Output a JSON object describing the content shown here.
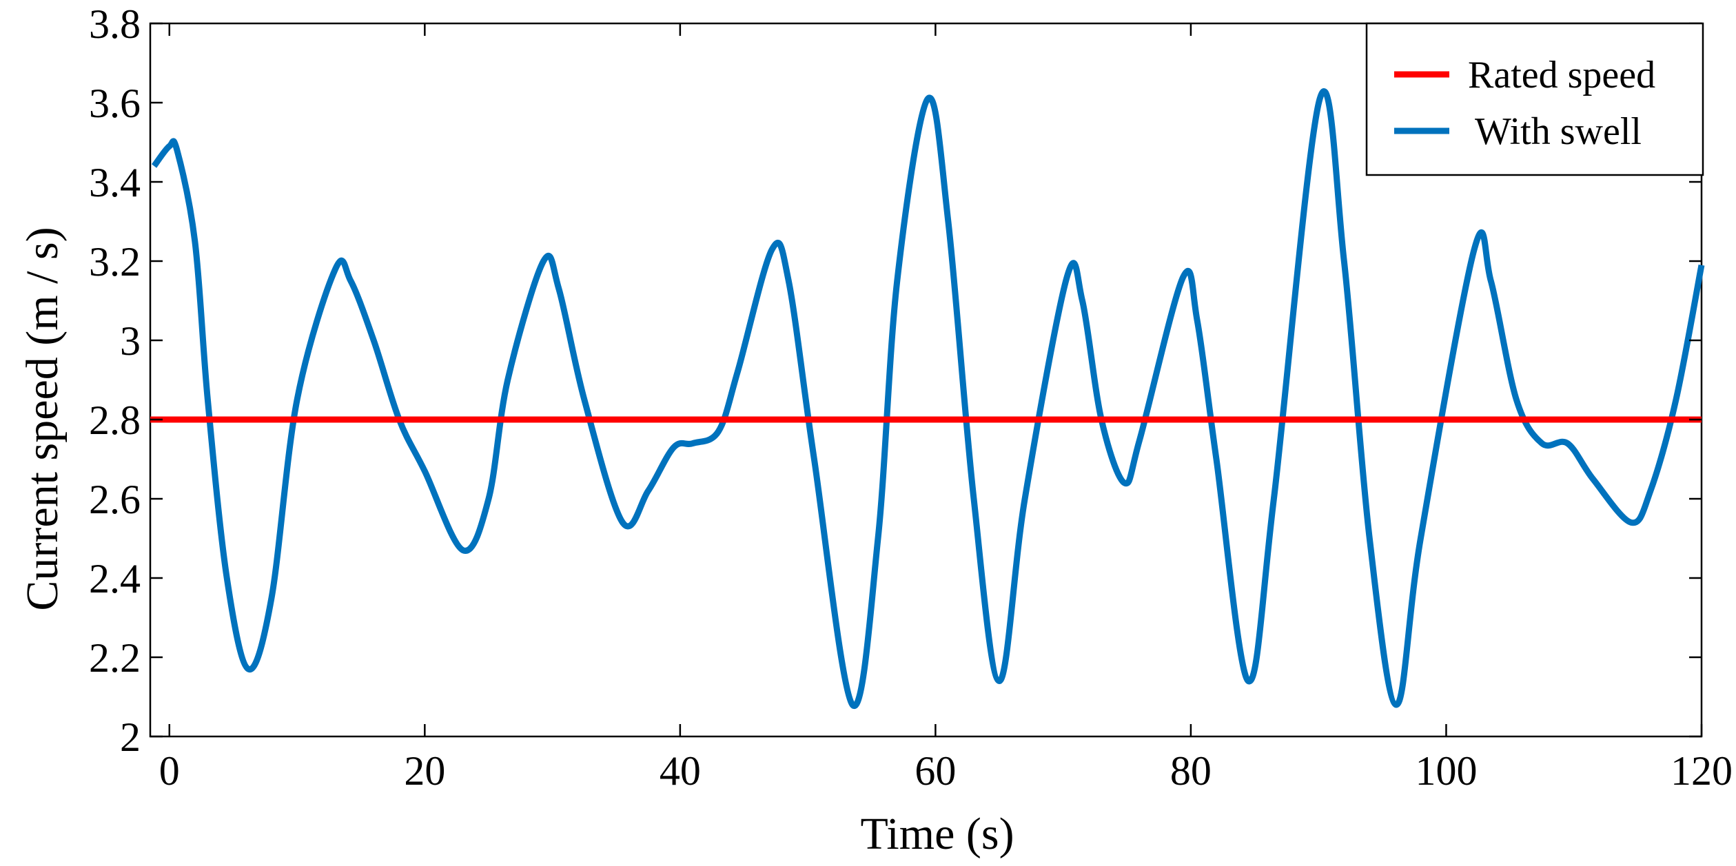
{
  "chart_data": {
    "type": "line",
    "title": "",
    "xlabel": "Time (s)",
    "ylabel": "Current speed (m / s)",
    "xlim": [
      -1.5,
      120
    ],
    "ylim": [
      2.0,
      3.8
    ],
    "xticks": [
      0,
      20,
      40,
      60,
      80,
      100,
      120
    ],
    "yticks": [
      2,
      2.2,
      2.4,
      2.6,
      2.8,
      3,
      3.2,
      3.4,
      3.6,
      3.8
    ],
    "xtick_labels": [
      "0",
      "20",
      "40",
      "60",
      "80",
      "100",
      "120"
    ],
    "ytick_labels": [
      "2",
      "2.2",
      "2.4",
      "2.6",
      "2.8",
      "3",
      "3.2",
      "3.4",
      "3.6",
      "3.8"
    ],
    "grid": false,
    "legend_position": "top-right",
    "series": [
      {
        "name": "Rated speed",
        "color": "#ff0000",
        "points": [
          [
            -1.5,
            2.8
          ],
          [
            120,
            2.8
          ]
        ]
      },
      {
        "name": "With swell",
        "color": "#0072bd",
        "points": [
          [
            -1.2,
            3.44
          ],
          [
            0,
            3.49
          ],
          [
            0.6,
            3.48
          ],
          [
            2,
            3.25
          ],
          [
            3,
            2.85
          ],
          [
            4.5,
            2.4
          ],
          [
            6.2,
            2.17
          ],
          [
            8,
            2.35
          ],
          [
            10,
            2.85
          ],
          [
            13,
            3.18
          ],
          [
            14.2,
            3.15
          ],
          [
            16,
            3.0
          ],
          [
            18,
            2.8
          ],
          [
            20,
            2.67
          ],
          [
            23,
            2.47
          ],
          [
            25,
            2.6
          ],
          [
            26.5,
            2.9
          ],
          [
            29.3,
            3.2
          ],
          [
            30.5,
            3.13
          ],
          [
            32.5,
            2.85
          ],
          [
            35.5,
            2.54
          ],
          [
            37.5,
            2.62
          ],
          [
            39.5,
            2.73
          ],
          [
            41,
            2.74
          ],
          [
            43,
            2.77
          ],
          [
            44.5,
            2.92
          ],
          [
            47.2,
            3.23
          ],
          [
            48.5,
            3.15
          ],
          [
            50.5,
            2.7
          ],
          [
            53.5,
            2.08
          ],
          [
            55.5,
            2.5
          ],
          [
            57,
            3.15
          ],
          [
            59.4,
            3.61
          ],
          [
            61,
            3.3
          ],
          [
            63,
            2.6
          ],
          [
            65,
            2.14
          ],
          [
            67,
            2.6
          ],
          [
            70.3,
            3.16
          ],
          [
            71.5,
            3.1
          ],
          [
            73,
            2.8
          ],
          [
            74.8,
            2.64
          ],
          [
            76,
            2.75
          ],
          [
            79.4,
            3.16
          ],
          [
            80.5,
            3.05
          ],
          [
            82,
            2.7
          ],
          [
            84.5,
            2.14
          ],
          [
            86.5,
            2.6
          ],
          [
            90.1,
            3.61
          ],
          [
            92,
            3.2
          ],
          [
            94,
            2.5
          ],
          [
            96.1,
            2.08
          ],
          [
            98,
            2.5
          ],
          [
            102.2,
            3.23
          ],
          [
            103.5,
            3.15
          ],
          [
            105.5,
            2.85
          ],
          [
            107.5,
            2.74
          ],
          [
            109.5,
            2.74
          ],
          [
            111.5,
            2.65
          ],
          [
            114.5,
            2.54
          ],
          [
            116,
            2.62
          ],
          [
            118,
            2.85
          ],
          [
            120,
            3.19
          ]
        ]
      }
    ]
  }
}
